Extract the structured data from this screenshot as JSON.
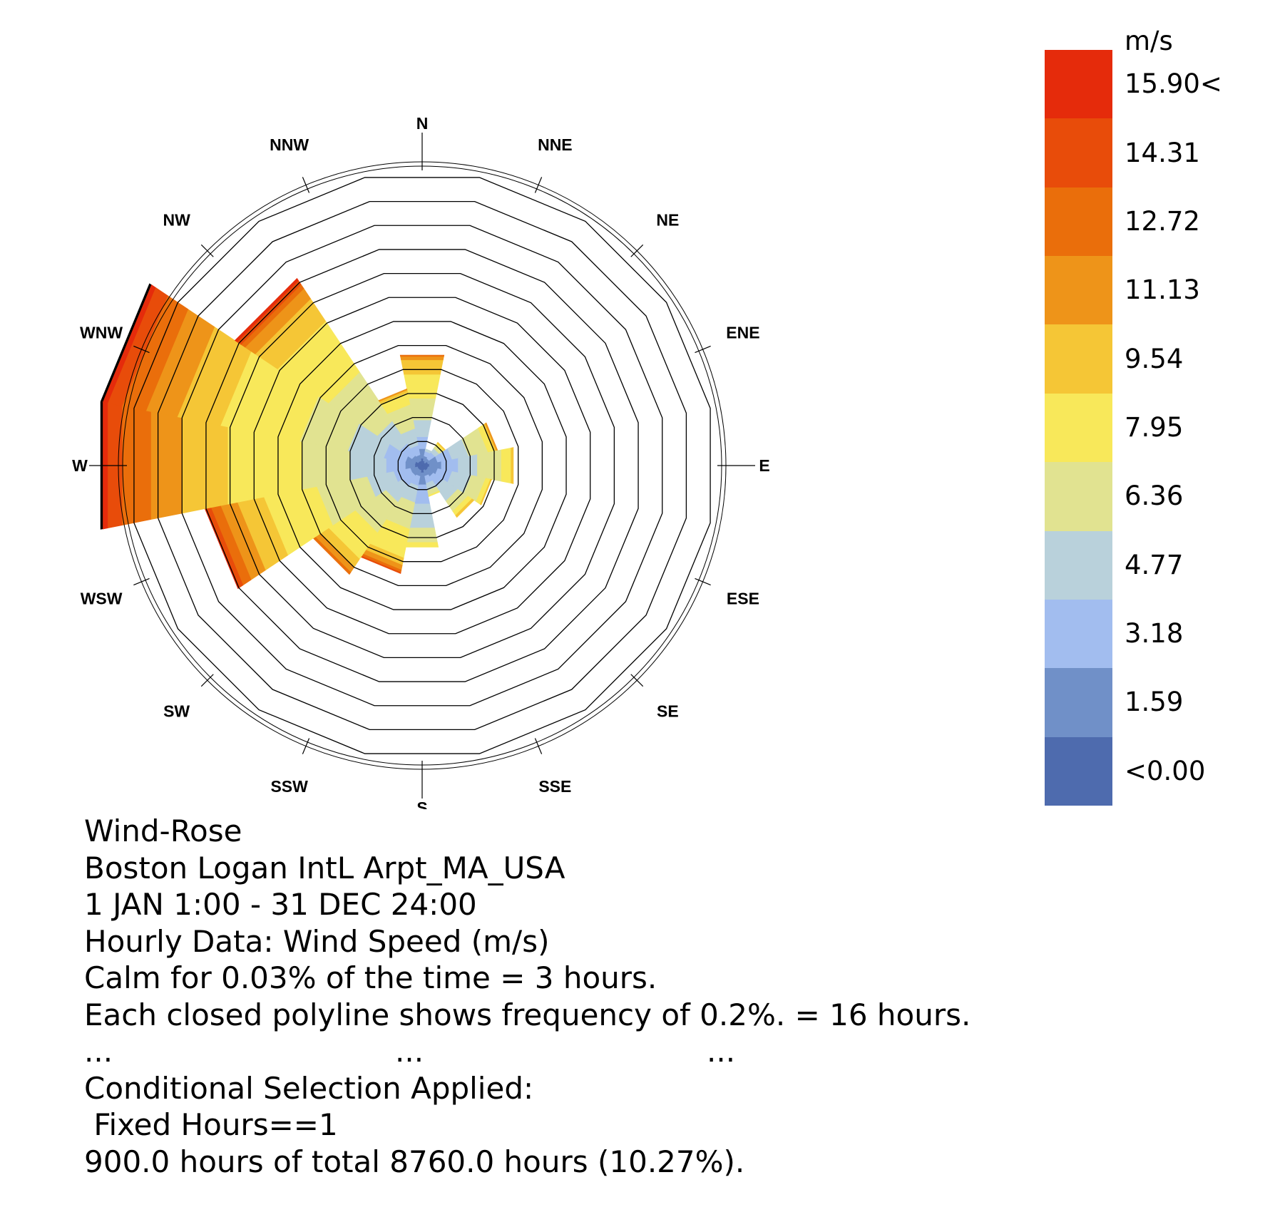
{
  "chart_data": {
    "type": "wind-rose",
    "directions": [
      "N",
      "NNE",
      "NE",
      "ENE",
      "E",
      "ESE",
      "SE",
      "SSE",
      "S",
      "SSW",
      "SW",
      "WSW",
      "W",
      "WNW",
      "NW",
      "NNW"
    ],
    "radial_unit": "percent frequency per ring",
    "ring_step_percent": 0.2,
    "rings": 12,
    "legend_unit": "m/s",
    "legend_labels": [
      "15.90<",
      "14.31",
      "12.72",
      "11.13",
      "9.54",
      "7.95",
      "6.36",
      "4.77",
      "3.18",
      "1.59",
      "<0.00"
    ],
    "legend_colors": [
      "#e52b0b",
      "#e84c0a",
      "#ea6e0b",
      "#ee9419",
      "#f5c636",
      "#f8e85a",
      "#e1e391",
      "#b9d1db",
      "#a2bdef",
      "#7090c8",
      "#4e6bae"
    ],
    "series_by_direction_percent": {
      "N": [
        0.06,
        0.08,
        0.1,
        0.14,
        0.18,
        0.2,
        0.12,
        0.03,
        0.01,
        0,
        0,
        0
      ],
      "NNE": [
        0.04,
        0.04,
        0.04,
        0.02,
        0,
        0,
        0,
        0,
        0,
        0,
        0,
        0
      ],
      "NE": [
        0.03,
        0.04,
        0.06,
        0.04,
        0.03,
        0.02,
        0.01,
        0,
        0,
        0,
        0,
        0
      ],
      "ENE": [
        0.05,
        0.08,
        0.12,
        0.14,
        0.16,
        0.05,
        0.02,
        0.01,
        0,
        0,
        0,
        0
      ],
      "E": [
        0.06,
        0.1,
        0.14,
        0.16,
        0.2,
        0.08,
        0.02,
        0,
        0,
        0,
        0,
        0
      ],
      "ESE": [
        0.05,
        0.08,
        0.12,
        0.16,
        0.12,
        0.04,
        0.01,
        0,
        0,
        0,
        0,
        0
      ],
      "SE": [
        0.05,
        0.06,
        0.1,
        0.14,
        0.1,
        0.04,
        0.02,
        0,
        0,
        0,
        0,
        0
      ],
      "SSE": [
        0.04,
        0.05,
        0.06,
        0.06,
        0.04,
        0.01,
        0,
        0,
        0,
        0,
        0,
        0
      ],
      "S": [
        0.06,
        0.1,
        0.16,
        0.2,
        0.12,
        0.04,
        0,
        0,
        0,
        0,
        0,
        0
      ],
      "SSW": [
        0.04,
        0.05,
        0.08,
        0.14,
        0.22,
        0.24,
        0.06,
        0.04,
        0.02,
        0.01,
        0,
        0
      ],
      "SW": [
        0.04,
        0.06,
        0.1,
        0.16,
        0.3,
        0.26,
        0.08,
        0.05,
        0.02,
        0,
        0,
        0
      ],
      "WSW": [
        0.04,
        0.06,
        0.14,
        0.22,
        0.42,
        0.44,
        0.22,
        0.14,
        0.08,
        0.04,
        0.01,
        0
      ],
      "W": [
        0.06,
        0.08,
        0.16,
        0.3,
        0.4,
        0.62,
        0.38,
        0.26,
        0.24,
        0.12,
        0.04,
        0.02
      ],
      "WNW": [
        0.06,
        0.08,
        0.18,
        0.3,
        0.4,
        0.66,
        0.36,
        0.26,
        0.2,
        0.12,
        0.04,
        0.02
      ],
      "NW": [
        0.04,
        0.06,
        0.12,
        0.22,
        0.48,
        0.5,
        0.22,
        0.1,
        0.04,
        0.04,
        0.02,
        0
      ],
      "NNW": [
        0.04,
        0.05,
        0.08,
        0.14,
        0.2,
        0.1,
        0.02,
        0.01,
        0,
        0,
        0,
        0
      ]
    }
  },
  "legend": {
    "unit": "m/s",
    "labels": [
      "15.90<",
      "14.31",
      "12.72",
      "11.13",
      "9.54",
      "7.95",
      "6.36",
      "4.77",
      "3.18",
      "1.59",
      "<0.00"
    ]
  },
  "info": {
    "line1": "Wind-Rose",
    "line2": "Boston Logan IntL Arpt_MA_USA",
    "line3": "1 JAN 1:00 - 31 DEC 24:00",
    "line4": "Hourly Data: Wind Speed (m/s)",
    "line5": "Calm for 0.03% of the time = 3 hours.",
    "line6": "Each closed polyline shows frequency of 0.2%. = 16 hours.",
    "dots": [
      "...",
      "...",
      "..."
    ],
    "line8": "Conditional Selection Applied:",
    "line9": " Fixed Hours==1",
    "line10": "900.0 hours of total 8760.0 hours (10.27%)."
  }
}
